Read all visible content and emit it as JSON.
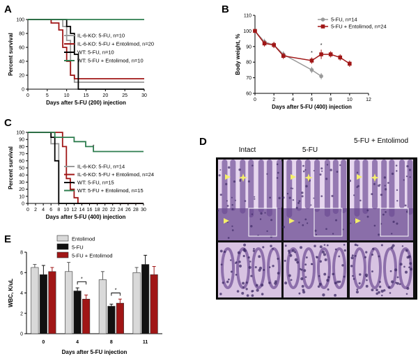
{
  "panels": {
    "A": "A",
    "B": "B",
    "C": "C",
    "D": "D",
    "E": "E"
  },
  "chart_data": [
    {
      "id": "A",
      "type": "line",
      "step": true,
      "xlabel": "Days after 5-FU (200) injection",
      "ylabel": "Percent survival",
      "xlim": [
        0,
        30
      ],
      "ylim": [
        0,
        100
      ],
      "xticks": [
        0,
        5,
        10,
        15,
        20,
        25,
        30
      ],
      "yticks": [
        0,
        20,
        40,
        60,
        80,
        100
      ],
      "series": [
        {
          "name": "IL-6-KO: 5-FU, n=10",
          "color": "#999999",
          "points": [
            [
              0,
              100
            ],
            [
              9,
              100
            ],
            [
              9,
              90
            ],
            [
              10,
              90
            ],
            [
              10,
              70
            ],
            [
              11,
              70
            ],
            [
              11,
              20
            ],
            [
              12,
              20
            ],
            [
              12,
              10
            ],
            [
              30,
              10
            ]
          ]
        },
        {
          "name": "IL-6-KO: 5-FU + Entolimod, n=20",
          "color": "#a01616",
          "points": [
            [
              0,
              100
            ],
            [
              6,
              100
            ],
            [
              6,
              95
            ],
            [
              8,
              95
            ],
            [
              8,
              85
            ],
            [
              9,
              85
            ],
            [
              9,
              60
            ],
            [
              10,
              60
            ],
            [
              10,
              40
            ],
            [
              11,
              40
            ],
            [
              11,
              20
            ],
            [
              12,
              20
            ],
            [
              12,
              15
            ],
            [
              30,
              15
            ]
          ]
        },
        {
          "name": "WT: 5-FU, n=10",
          "color": "#000000",
          "points": [
            [
              0,
              100
            ],
            [
              10,
              100
            ],
            [
              10,
              90
            ],
            [
              11,
              90
            ],
            [
              11,
              80
            ],
            [
              12,
              80
            ],
            [
              12,
              50
            ],
            [
              13,
              50
            ],
            [
              13,
              0
            ],
            [
              30,
              0
            ]
          ]
        },
        {
          "name": "WT: 5-FU + Entolimod, n=10",
          "color": "#2e7d4f",
          "points": [
            [
              0,
              100
            ],
            [
              30,
              100
            ]
          ]
        }
      ]
    },
    {
      "id": "B",
      "type": "line",
      "xlabel": "Days after 5-FU (400) injection",
      "ylabel": "Body weight, %",
      "xlim": [
        0,
        12
      ],
      "ylim": [
        60,
        110
      ],
      "xticks": [
        0,
        2,
        4,
        6,
        8,
        10,
        12
      ],
      "yticks": [
        60,
        70,
        80,
        90,
        100,
        110
      ],
      "annotations": [
        {
          "text": "*",
          "x": 6,
          "y": 85
        },
        {
          "text": "*",
          "x": 7,
          "y": 90
        }
      ],
      "series": [
        {
          "name": "5-FU, n=14",
          "color": "#999999",
          "marker": "circle",
          "x": [
            0,
            1,
            2,
            3,
            6,
            7
          ],
          "y": [
            100,
            93,
            91,
            85,
            75,
            71
          ],
          "err": [
            1,
            2,
            2,
            2,
            2,
            2
          ]
        },
        {
          "name": "5-FU + Entolimod, n=24",
          "color": "#a01616",
          "marker": "square",
          "x": [
            0,
            1,
            2,
            3,
            6,
            7,
            8,
            9,
            10
          ],
          "y": [
            100,
            92,
            91,
            84,
            81,
            85,
            85,
            83,
            79
          ],
          "err": [
            1,
            2,
            2,
            2,
            2,
            3,
            2,
            2,
            2
          ]
        }
      ]
    },
    {
      "id": "C",
      "type": "line",
      "step": true,
      "xlabel": "Days after 5-FU (400) injection",
      "ylabel": "Percent survival",
      "xlim": [
        0,
        30
      ],
      "ylim": [
        0,
        100
      ],
      "xticks": [
        0,
        2,
        4,
        6,
        8,
        10,
        12,
        14,
        16,
        18,
        20,
        22,
        24,
        26,
        28,
        30
      ],
      "yticks": [
        0,
        10,
        20,
        30,
        40,
        50,
        60,
        70,
        80,
        90,
        100
      ],
      "annotations": [
        {
          "text": "*",
          "x": 17,
          "y": 78
        },
        {
          "text": "*",
          "x": 12,
          "y": 25
        }
      ],
      "series": [
        {
          "name": "IL-6-KO: 5-FU, n=14",
          "color": "#999999",
          "points": [
            [
              0,
              100
            ],
            [
              6,
              100
            ],
            [
              6,
              84
            ],
            [
              8,
              84
            ],
            [
              8,
              0
            ],
            [
              30,
              0
            ]
          ]
        },
        {
          "name": "IL-6-KO: 5-FU + Entolimod, n=24",
          "color": "#a01616",
          "points": [
            [
              0,
              100
            ],
            [
              9,
              100
            ],
            [
              9,
              80
            ],
            [
              10,
              80
            ],
            [
              10,
              35
            ],
            [
              11,
              35
            ],
            [
              11,
              20
            ],
            [
              12,
              20
            ],
            [
              12,
              8
            ],
            [
              13,
              8
            ],
            [
              13,
              0
            ],
            [
              30,
              0
            ]
          ]
        },
        {
          "name": "WT: 5-FU, n=15",
          "color": "#000000",
          "points": [
            [
              0,
              100
            ],
            [
              6,
              100
            ],
            [
              6,
              93
            ],
            [
              7,
              93
            ],
            [
              7,
              60
            ],
            [
              8,
              60
            ],
            [
              8,
              0
            ],
            [
              30,
              0
            ]
          ]
        },
        {
          "name": "WT: 5-FU + Entolimod, n=15",
          "color": "#2e7d4f",
          "points": [
            [
              0,
              100
            ],
            [
              7,
              100
            ],
            [
              7,
              93
            ],
            [
              12,
              93
            ],
            [
              12,
              87
            ],
            [
              15,
              87
            ],
            [
              15,
              80
            ],
            [
              17,
              80
            ],
            [
              17,
              73
            ],
            [
              30,
              73
            ]
          ]
        }
      ]
    },
    {
      "id": "E",
      "type": "bar",
      "xlabel": "Days after 5-FU injection",
      "ylabel": "WBC, K/uL",
      "ylim": [
        0,
        8
      ],
      "yticks": [
        0,
        2,
        4,
        6,
        8
      ],
      "categories": [
        "0",
        "4",
        "8",
        "11"
      ],
      "annotations": [
        {
          "text": "*",
          "category": "4"
        },
        {
          "text": "*",
          "category": "8"
        }
      ],
      "series": [
        {
          "name": "Entolimod",
          "color": "#d9d9d9",
          "values": [
            6.5,
            6.1,
            5.3,
            6.0
          ],
          "err": [
            0.3,
            0.9,
            0.8,
            0.5
          ]
        },
        {
          "name": "5-FU",
          "color": "#111111",
          "values": [
            5.8,
            4.2,
            2.7,
            6.8
          ],
          "err": [
            0.9,
            0.3,
            0.2,
            0.9
          ]
        },
        {
          "name": "5-FU + Entolimod",
          "color": "#a01616",
          "values": [
            6.1,
            3.4,
            3.0,
            5.8
          ],
          "err": [
            0.4,
            0.4,
            0.4,
            0.8
          ]
        }
      ]
    }
  ],
  "histology": {
    "columns": [
      {
        "title": "Intact"
      },
      {
        "title": "5-FU"
      },
      {
        "title": "5-FU + Entolimod"
      }
    ]
  },
  "colors": {
    "grey": "#999999",
    "red": "#a01616",
    "black": "#000000",
    "green": "#2e7d4f",
    "arrow": "#f4ee6a",
    "tissue": "#7a5a9e"
  }
}
